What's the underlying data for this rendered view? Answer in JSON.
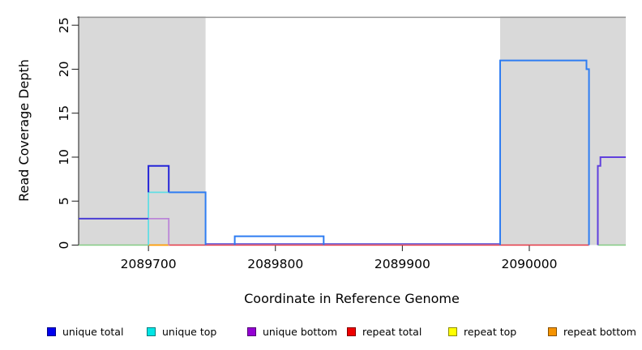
{
  "chart_data": {
    "type": "line",
    "subtype": "step-coverage-plot",
    "title": "",
    "xlabel": "Coordinate in Reference Genome",
    "ylabel": "Read Coverage Depth",
    "xlim": [
      2089645,
      2090076
    ],
    "ylim": [
      0,
      26
    ],
    "grid": false,
    "x_tick_values": [
      2089700,
      2089800,
      2089900,
      2090000
    ],
    "x_tick_labels": [
      "2089700",
      "2089800",
      "2089900",
      "2090000"
    ],
    "y_tick_values": [
      0,
      5,
      10,
      15,
      20,
      25
    ],
    "y_tick_labels": [
      "0",
      "5",
      "10",
      "15",
      "20",
      "25"
    ],
    "shaded_regions": [
      [
        2089645,
        2089745
      ],
      [
        2089977,
        2090076
      ]
    ],
    "shaded_region_color": "#d9d9d9",
    "cap_line": {
      "y": 25.9,
      "color": "#969696"
    },
    "axis_color": "#1a1a1a",
    "series": [
      {
        "name": "unique total",
        "color": "#0000ee",
        "steps": [
          [
            2089645,
            3
          ],
          [
            2089700,
            9
          ],
          [
            2089716,
            6
          ],
          [
            2089745,
            0
          ],
          [
            2089768,
            1
          ],
          [
            2089838,
            0
          ],
          [
            2089977,
            21
          ],
          [
            2090045,
            20
          ],
          [
            2090047,
            0
          ],
          [
            2090054,
            9
          ],
          [
            2090056,
            10
          ]
        ],
        "x_end": 2090076
      },
      {
        "name": "unique top",
        "color": "#00e5e5",
        "steps": [
          [
            2089645,
            0
          ],
          [
            2089700,
            6
          ],
          [
            2089745,
            0
          ],
          [
            2089768,
            1
          ],
          [
            2089838,
            0
          ],
          [
            2089977,
            21
          ],
          [
            2090045,
            20
          ],
          [
            2090047,
            0
          ]
        ],
        "x_end": 2090076
      },
      {
        "name": "unique bottom",
        "color": "#9400d3",
        "steps": [
          [
            2089645,
            3
          ],
          [
            2089716,
            0
          ],
          [
            2090054,
            9
          ],
          [
            2090056,
            10
          ]
        ],
        "x_end": 2090076
      },
      {
        "name": "repeat total",
        "color": "#ee0000",
        "steps": [
          [
            2089645,
            0
          ]
        ],
        "x_end": 2090076
      },
      {
        "name": "repeat top",
        "color": "#ffff00",
        "steps": [
          [
            2089645,
            0
          ]
        ],
        "x_end": 2090076
      },
      {
        "name": "repeat bottom",
        "color": "#f59300",
        "steps": [
          [
            2089645,
            0
          ]
        ],
        "x_end": 2090076
      }
    ],
    "rendered_segments": [
      {
        "color": "#e63946",
        "width": 1.5,
        "dy": 0,
        "pts": [
          [
            2089716,
            0
          ],
          [
            2090047,
            0
          ]
        ]
      },
      {
        "color": "#655bd8",
        "width": 1.5,
        "dy": -1.6,
        "pts": [
          [
            2089745,
            0
          ],
          [
            2089977,
            0
          ]
        ]
      },
      {
        "color": "#83cb83",
        "width": 1.6,
        "dy": 0,
        "pts": [
          [
            2089645,
            0
          ],
          [
            2089700,
            0
          ]
        ]
      },
      {
        "color": "#ff9a00",
        "width": 1.8,
        "dy": 0,
        "pts": [
          [
            2089700,
            0
          ],
          [
            2089716,
            0
          ]
        ]
      },
      {
        "color": "#83cb83",
        "width": 1.6,
        "dy": 0,
        "pts": [
          [
            2090054,
            0
          ],
          [
            2090076,
            0
          ]
        ]
      },
      {
        "color": "#62dde4",
        "width": 1.8,
        "dy": 0,
        "pts": [
          [
            2089700,
            0
          ],
          [
            2089700,
            6
          ],
          [
            2089716,
            6
          ]
        ]
      },
      {
        "color": "#bb86d8",
        "width": 1.8,
        "dy": 0,
        "pts": [
          [
            2089700,
            3
          ],
          [
            2089716,
            3
          ],
          [
            2089716,
            0
          ]
        ]
      },
      {
        "color": "#4a3dd4",
        "width": 2,
        "dy": 0,
        "pts": [
          [
            2089645,
            3
          ],
          [
            2089700,
            3
          ]
        ]
      },
      {
        "color": "#2525d8",
        "width": 2,
        "dy": 0,
        "pts": [
          [
            2089700,
            6
          ],
          [
            2089700,
            9
          ],
          [
            2089716,
            9
          ],
          [
            2089716,
            6
          ]
        ]
      },
      {
        "color": "#2f7df2",
        "width": 2,
        "dy": 0,
        "pts": [
          [
            2089716,
            6
          ],
          [
            2089745,
            6
          ],
          [
            2089745,
            0
          ]
        ]
      },
      {
        "color": "#2f7df2",
        "width": 2,
        "dy": 0,
        "pts": [
          [
            2089768,
            0
          ],
          [
            2089768,
            1
          ],
          [
            2089838,
            1
          ],
          [
            2089838,
            0
          ]
        ]
      },
      {
        "color": "#2f7df2",
        "width": 2,
        "dy": 0,
        "pts": [
          [
            2089977,
            0
          ],
          [
            2089977,
            21
          ],
          [
            2090045,
            21
          ],
          [
            2090045,
            20
          ],
          [
            2090047,
            20
          ],
          [
            2090047,
            0
          ]
        ]
      },
      {
        "color": "#6040dd",
        "width": 2,
        "dy": 0,
        "pts": [
          [
            2090054,
            0
          ],
          [
            2090054,
            9
          ],
          [
            2090056,
            9
          ],
          [
            2090056,
            10
          ],
          [
            2090076,
            10
          ]
        ]
      }
    ]
  },
  "legend": {
    "items": [
      {
        "label": "unique total",
        "color": "#0000ee"
      },
      {
        "label": "unique top",
        "color": "#00e5e5"
      },
      {
        "label": "unique bottom",
        "color": "#9400d3"
      },
      {
        "label": "repeat total",
        "color": "#ee0000"
      },
      {
        "label": "repeat top",
        "color": "#ffff00"
      },
      {
        "label": "repeat bottom",
        "color": "#f59300"
      }
    ]
  }
}
